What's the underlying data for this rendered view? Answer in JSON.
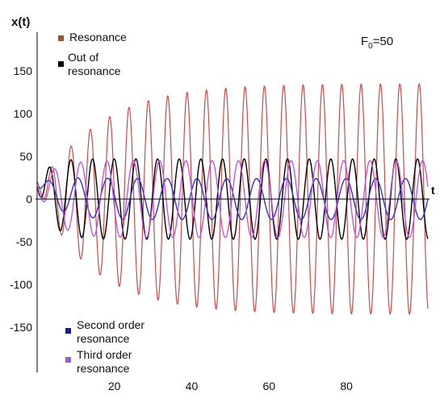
{
  "chart_data": {
    "type": "line",
    "ylabel": "x(t)",
    "xlabel": "t",
    "annotation_main": "F",
    "annotation_sub": "0",
    "annotation_tail": "=50",
    "xlim": [
      0,
      101
    ],
    "ylim": [
      -150,
      180
    ],
    "x_ticks": [
      "20",
      "40",
      "60",
      "80"
    ],
    "x_tick_values": [
      20,
      40,
      60,
      80
    ],
    "y_ticks": [
      "150",
      "100",
      "50",
      "0",
      "-50",
      "-100",
      "-150"
    ],
    "y_tick_values": [
      150,
      100,
      50,
      0,
      -50,
      -100,
      -150
    ],
    "series": [
      {
        "name": "Resonance",
        "legend_lines": [
          "Resonance"
        ],
        "color": "#c0504d",
        "legend_color": "#8b5a3c",
        "amplitude": 135,
        "build_time": 15,
        "period": 5.0,
        "phase": 0,
        "offset": 20,
        "offset_decay": 4,
        "width": 1.2
      },
      {
        "name": "Out of resonance",
        "legend_lines": [
          "Out of",
          "resonance"
        ],
        "color": "#000000",
        "legend_color": "#000000",
        "amplitude": 47,
        "build_time": 3,
        "period": 5.6,
        "phase": 1.2,
        "offset": 15,
        "offset_decay": 4,
        "width": 1.4
      },
      {
        "name": "Second order resonance",
        "legend_lines": [
          "Second order",
          "resonance"
        ],
        "color": "#3a2fc4",
        "legend_color": "#1a1aa8",
        "amplitude": 24,
        "build_time": 4,
        "period": 7.7,
        "phase": 2.4,
        "offset": 15,
        "offset_decay": 6,
        "width": 1.4
      },
      {
        "name": "Third order resonance",
        "legend_lines": [
          "Third order",
          "resonance"
        ],
        "color": "#b94fe0",
        "legend_color": "#9b5bd0",
        "amplitude": 45,
        "build_time": 4,
        "period": 6.8,
        "phase": 0.6,
        "offset": 15,
        "offset_decay": 4,
        "width": 1.3
      }
    ]
  }
}
